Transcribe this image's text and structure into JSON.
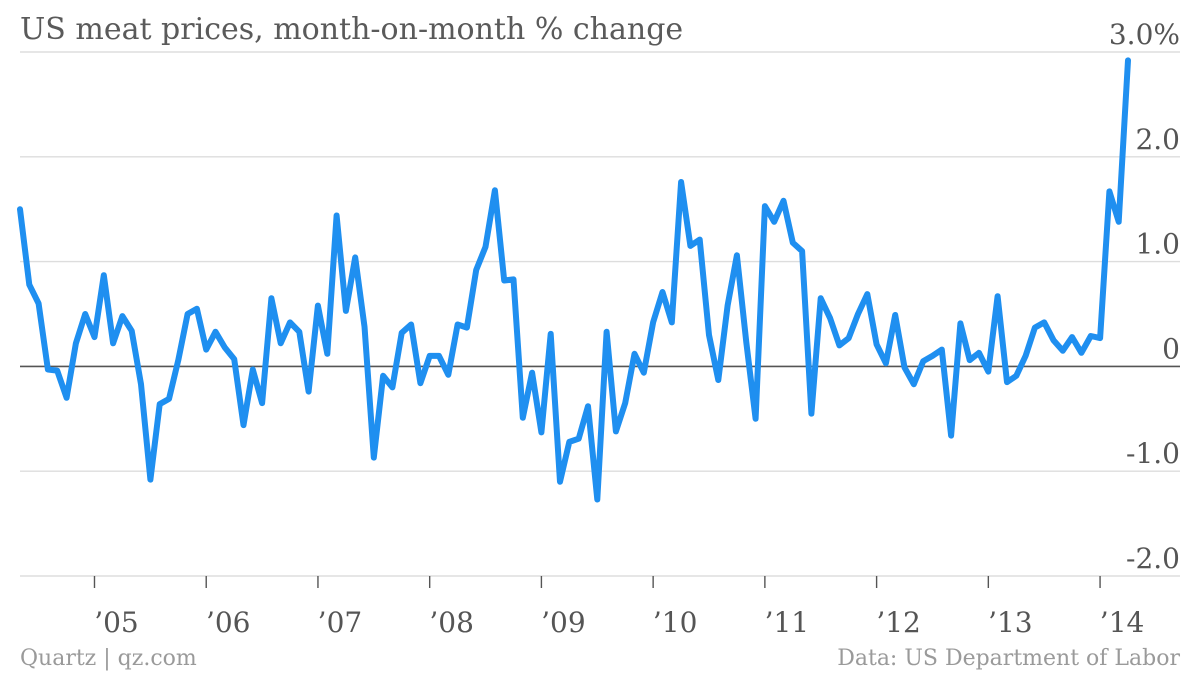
{
  "title": "US meat prices, month-on-month % change",
  "source_left": "Quartz | qz.com",
  "source_right": "Data: US Department of Labor",
  "colors": {
    "line": "#1f8ff0",
    "grid": "#dddddd",
    "zero": "#555555",
    "text": "#555555"
  },
  "chart_data": {
    "type": "line",
    "title": "US meat prices, month-on-month % change",
    "xlabel": "",
    "ylabel": "",
    "ylim": [
      -2.0,
      3.0
    ],
    "y_ticks": [
      {
        "value": 3.0,
        "label": "3.0%"
      },
      {
        "value": 2.0,
        "label": "2.0"
      },
      {
        "value": 1.0,
        "label": "1.0"
      },
      {
        "value": 0,
        "label": "0"
      },
      {
        "value": -1.0,
        "label": "-1.0"
      },
      {
        "value": -2.0,
        "label": "-2.0"
      }
    ],
    "x_ticks": [
      {
        "year": 2005,
        "label": "’05"
      },
      {
        "year": 2006,
        "label": "’06"
      },
      {
        "year": 2007,
        "label": "’07"
      },
      {
        "year": 2008,
        "label": "’08"
      },
      {
        "year": 2009,
        "label": "’09"
      },
      {
        "year": 2010,
        "label": "’10"
      },
      {
        "year": 2011,
        "label": "’11"
      },
      {
        "year": 2012,
        "label": "’12"
      },
      {
        "year": 2013,
        "label": "’13"
      },
      {
        "year": 2014,
        "label": "’14"
      }
    ],
    "x_start": "2004-05",
    "grid": true,
    "series": [
      {
        "values": [
          1.5,
          0.78,
          0.6,
          -0.03,
          -0.04,
          -0.3,
          0.22,
          0.5,
          0.28,
          0.87,
          0.22,
          0.48,
          0.34,
          -0.17,
          -1.08,
          -0.36,
          -0.31,
          0.06,
          0.5,
          0.55,
          0.16,
          0.33,
          0.18,
          0.07,
          -0.56,
          -0.03,
          -0.35,
          0.65,
          0.22,
          0.42,
          0.33,
          -0.24,
          0.58,
          0.12,
          1.44,
          0.53,
          1.04,
          0.38,
          -0.87,
          -0.09,
          -0.2,
          0.32,
          0.4,
          -0.16,
          0.1,
          0.1,
          -0.08,
          0.4,
          0.37,
          0.92,
          1.14,
          1.68,
          0.82,
          0.83,
          -0.49,
          -0.06,
          -0.63,
          0.31,
          -1.1,
          -0.72,
          -0.69,
          -0.38,
          -1.27,
          0.33,
          -0.62,
          -0.35,
          0.12,
          -0.06,
          0.42,
          0.71,
          0.42,
          1.76,
          1.15,
          1.21,
          0.3,
          -0.13,
          0.58,
          1.06,
          0.23,
          -0.5,
          1.53,
          1.38,
          1.58,
          1.18,
          1.1,
          -0.45,
          0.65,
          0.46,
          0.2,
          0.27,
          0.5,
          0.69,
          0.21,
          0.03,
          0.49,
          -0.01,
          -0.17,
          0.05,
          0.1,
          0.16,
          -0.66,
          0.41,
          0.06,
          0.13,
          -0.05,
          0.67,
          -0.15,
          -0.09,
          0.1,
          0.37,
          0.42,
          0.25,
          0.15,
          0.28,
          0.13,
          0.29,
          0.27,
          1.67,
          1.38,
          2.92
        ]
      }
    ]
  }
}
